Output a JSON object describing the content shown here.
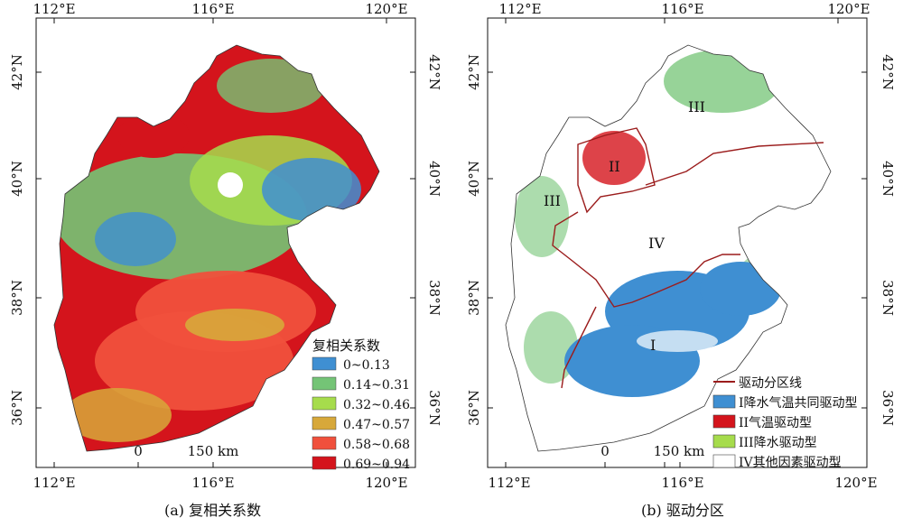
{
  "panel_a": {
    "caption": "(a)  复相关系数",
    "legend_title": "复相关系数",
    "legend": [
      {
        "label": "0~0.13",
        "color": "#3f8fd2"
      },
      {
        "label": "0.14~0.31",
        "color": "#74c476"
      },
      {
        "label": "0.32~0.46",
        "color": "#a6dc4c"
      },
      {
        "label": "0.47~0.57",
        "color": "#d7a83a"
      },
      {
        "label": "0.58~0.68",
        "color": "#f0503c"
      },
      {
        "label": "0.69~0.94",
        "color": "#d4141c"
      }
    ],
    "scale": {
      "zero": "0",
      "distance": "150 km"
    }
  },
  "panel_b": {
    "caption": "(b) 驱动分区",
    "legend": [
      {
        "label": "驱动分区线",
        "color": "#9b1c1c"
      },
      {
        "label": "I降水气温共同驱动型",
        "color": "#3f8fd2"
      },
      {
        "label": "II气温驱动型",
        "color": "#d4141c"
      },
      {
        "label": "III降水驱动型",
        "color": "#a6dc4c"
      },
      {
        "label": "IV其他因素驱动型",
        "color": "#ffffff"
      }
    ],
    "zones": {
      "I": "I",
      "II": "II",
      "III_east": "III",
      "III_west": "III",
      "IV": "IV"
    },
    "scale": {
      "zero": "0",
      "distance": "150 km"
    }
  },
  "axes": {
    "lon_ticks": [
      "112°E",
      "116°E",
      "120°E"
    ],
    "lat_ticks": [
      "42°N",
      "40°N",
      "38°N",
      "36°N"
    ]
  }
}
